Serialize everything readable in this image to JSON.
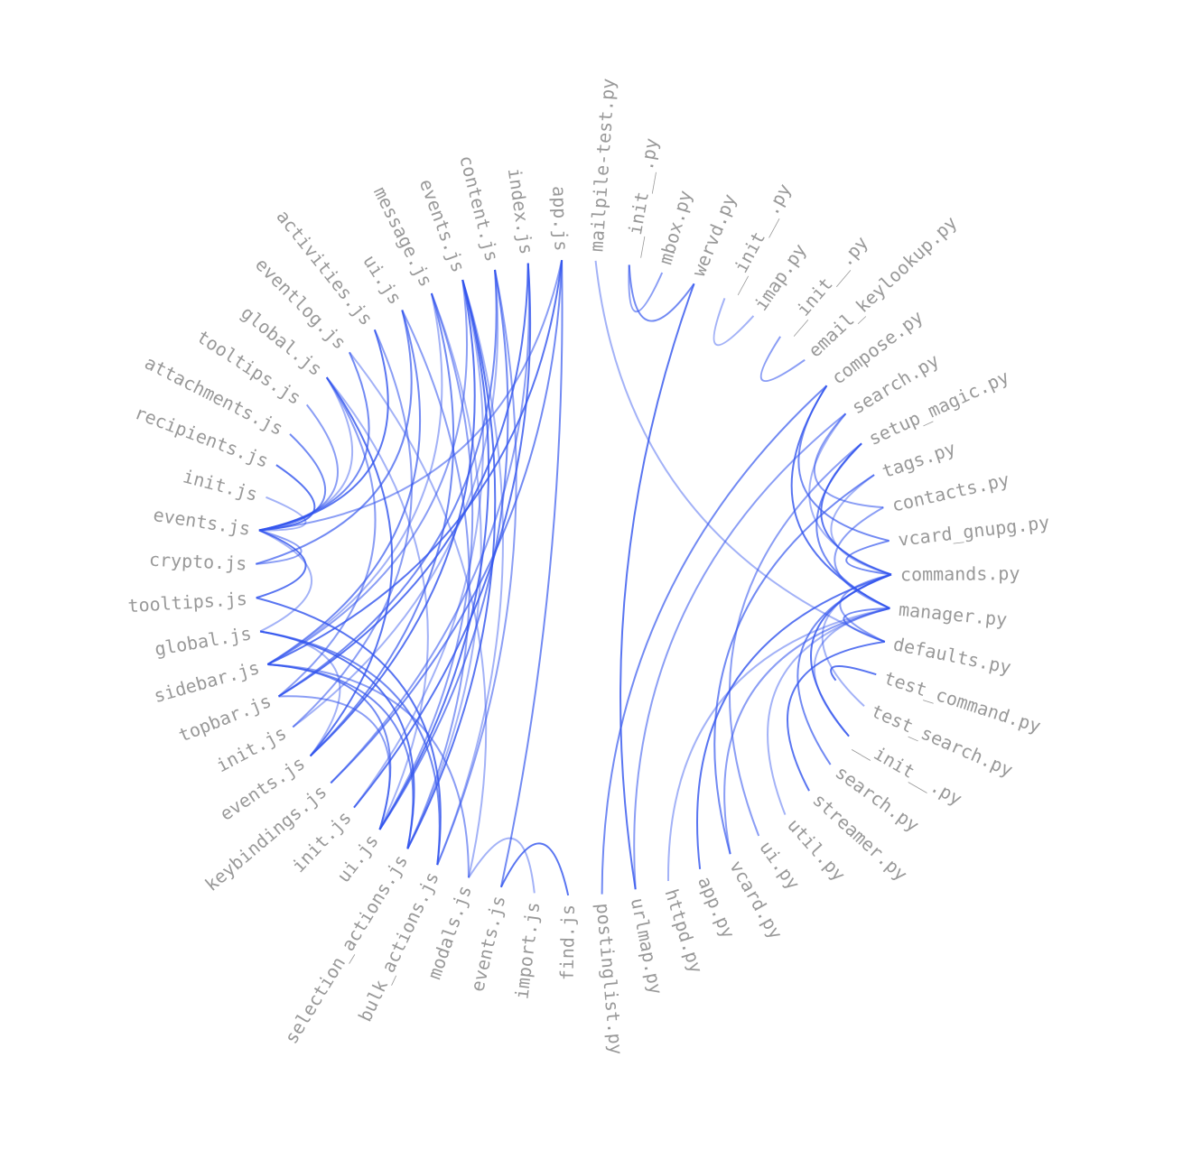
{
  "link_color": "#3355ee",
  "label_color": "#999999",
  "nodes": [
    "mailpile-test.py",
    "__init__.py",
    "mbox.py",
    "wervd.py",
    "__init__.py",
    "imap.py",
    "__init__.py",
    "email_keylookup.py",
    "compose.py",
    "search.py",
    "setup_magic.py",
    "tags.py",
    "contacts.py",
    "vcard_gnupg.py",
    "commands.py",
    "manager.py",
    "defaults.py",
    "test_command.py",
    "test_search.py",
    "__init__.py",
    "search.py",
    "streamer.py",
    "util.py",
    "ui.py",
    "vcard.py",
    "app.py",
    "httpd.py",
    "urlmap.py",
    "postinglist.py",
    "find.js",
    "import.js",
    "events.js",
    "modals.js",
    "bulk_actions.js",
    "selection_actions.js",
    "ui.js",
    "init.js",
    "keybindings.js",
    "events.js",
    "init.js",
    "topbar.js",
    "sidebar.js",
    "global.js",
    "tooltips.js",
    "crypto.js",
    "events.js",
    "init.js",
    "recipients.js",
    "attachments.js",
    "tooltips.js",
    "global.js",
    "eventlog.js",
    "activities.js",
    "ui.js",
    "message.js",
    "events.js",
    "content.js",
    "index.js",
    "app.js"
  ],
  "links": [
    [
      0,
      16
    ],
    [
      1,
      2
    ],
    [
      1,
      3
    ],
    [
      3,
      27
    ],
    [
      4,
      5
    ],
    [
      6,
      7
    ],
    [
      8,
      13
    ],
    [
      8,
      15
    ],
    [
      9,
      14
    ],
    [
      9,
      12
    ],
    [
      10,
      15
    ],
    [
      10,
      14
    ],
    [
      11,
      14
    ],
    [
      12,
      15
    ],
    [
      13,
      14
    ],
    [
      14,
      19
    ],
    [
      15,
      19
    ],
    [
      14,
      16
    ],
    [
      15,
      16
    ],
    [
      17,
      17
    ],
    [
      14,
      18
    ],
    [
      15,
      24
    ],
    [
      20,
      14
    ],
    [
      21,
      16
    ],
    [
      22,
      15
    ],
    [
      23,
      10
    ],
    [
      24,
      11
    ],
    [
      25,
      14
    ],
    [
      26,
      15
    ],
    [
      27,
      9
    ],
    [
      28,
      8
    ],
    [
      29,
      31
    ],
    [
      30,
      32
    ],
    [
      45,
      49
    ],
    [
      45,
      48
    ],
    [
      45,
      47
    ],
    [
      45,
      46
    ],
    [
      45,
      44
    ],
    [
      45,
      51
    ],
    [
      45,
      52
    ],
    [
      45,
      50
    ],
    [
      45,
      58
    ],
    [
      44,
      53
    ],
    [
      43,
      45
    ],
    [
      42,
      45
    ],
    [
      40,
      50
    ],
    [
      40,
      56
    ],
    [
      40,
      57
    ],
    [
      41,
      54
    ],
    [
      41,
      55
    ],
    [
      41,
      53
    ],
    [
      41,
      58
    ],
    [
      39,
      56
    ],
    [
      39,
      52
    ],
    [
      38,
      54
    ],
    [
      38,
      55
    ],
    [
      38,
      42
    ],
    [
      37,
      57
    ],
    [
      37,
      58
    ],
    [
      36,
      57
    ],
    [
      36,
      55
    ],
    [
      35,
      54
    ],
    [
      35,
      56
    ],
    [
      35,
      55
    ],
    [
      35,
      50
    ],
    [
      35,
      40
    ],
    [
      35,
      41
    ],
    [
      34,
      55
    ],
    [
      34,
      54
    ],
    [
      34,
      53
    ],
    [
      34,
      41
    ],
    [
      34,
      42
    ],
    [
      33,
      55
    ],
    [
      33,
      56
    ],
    [
      33,
      42
    ],
    [
      33,
      43
    ],
    [
      32,
      51
    ],
    [
      32,
      41
    ],
    [
      31,
      58
    ],
    [
      38,
      50
    ]
  ]
}
